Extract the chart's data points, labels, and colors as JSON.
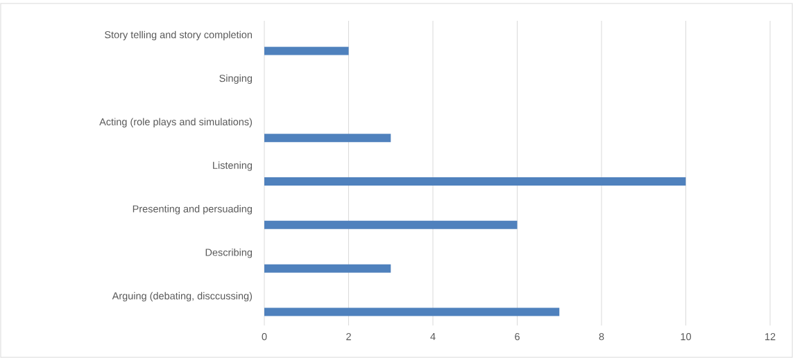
{
  "chart_data": {
    "type": "bar",
    "orientation": "horizontal",
    "categories": [
      "Story telling and story completion",
      "Singing",
      "Acting (role plays and simulations)",
      "Listening",
      "Presenting and persuading",
      "Describing",
      "Arguing (debating, disccussing)"
    ],
    "values": [
      2,
      0,
      3,
      10,
      6,
      3,
      7
    ],
    "color": "#4f81bd",
    "xlim": [
      0,
      12
    ],
    "xticks": [
      0,
      2,
      4,
      6,
      8,
      10,
      12
    ],
    "grid": "x"
  }
}
